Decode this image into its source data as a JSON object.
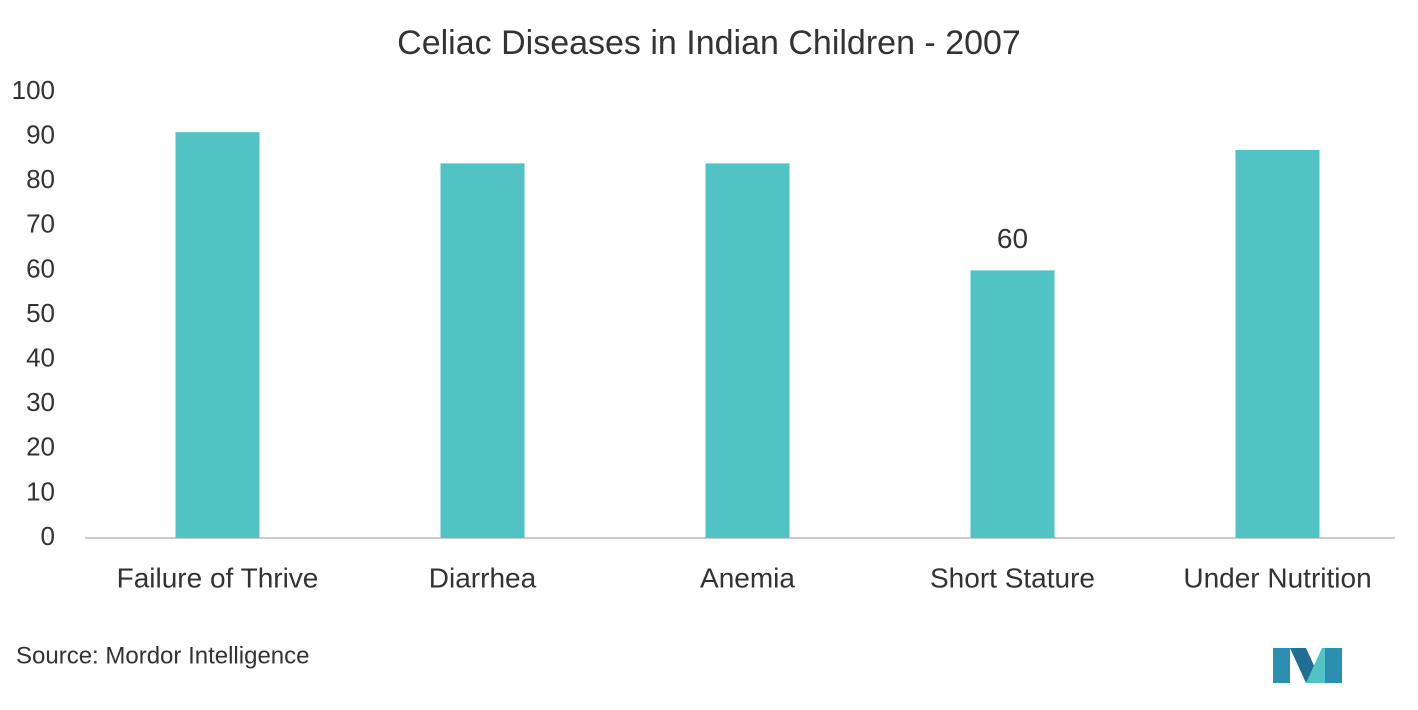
{
  "chart_data": {
    "type": "bar",
    "title": "Celiac Diseases in Indian Children - 2007",
    "categories": [
      "Failure of Thrive",
      "Diarrhea",
      "Anemia",
      "Short Stature",
      "Under Nutrition"
    ],
    "values": [
      91,
      84,
      84,
      60,
      87
    ],
    "value_labels": [
      null,
      null,
      null,
      "60",
      null
    ],
    "color": "#52c3c5",
    "ylim": [
      0,
      100
    ],
    "yticks": [
      0,
      10,
      20,
      30,
      40,
      50,
      60,
      70,
      80,
      90,
      100
    ],
    "grid": false,
    "source": "Source: Mordor Intelligence"
  }
}
